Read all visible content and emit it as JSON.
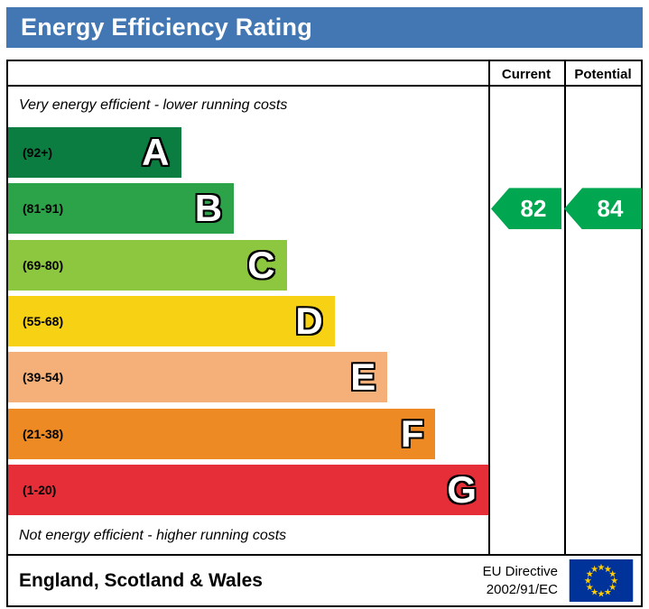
{
  "header": {
    "title": "Energy Efficiency Rating",
    "bar_color": "#4277b4"
  },
  "table_header": {
    "current": "Current",
    "potential": "Potential"
  },
  "captions": {
    "top": "Very energy efficient - lower running costs",
    "bottom": "Not energy efficient - higher running costs"
  },
  "chart_data": {
    "type": "bar",
    "title": "Energy Efficiency Rating",
    "bands": [
      {
        "letter": "A",
        "range_label": "(92+)",
        "range_min": 92,
        "range_max": 100,
        "color": "#0c7d40",
        "width_pct": 36
      },
      {
        "letter": "B",
        "range_label": "(81-91)",
        "range_min": 81,
        "range_max": 91,
        "color": "#2ca349",
        "width_pct": 47
      },
      {
        "letter": "C",
        "range_label": "(69-80)",
        "range_min": 69,
        "range_max": 80,
        "color": "#8dc63f",
        "width_pct": 58
      },
      {
        "letter": "D",
        "range_label": "(55-68)",
        "range_min": 55,
        "range_max": 68,
        "color": "#f7d113",
        "width_pct": 68
      },
      {
        "letter": "E",
        "range_label": "(39-54)",
        "range_min": 39,
        "range_max": 54,
        "color": "#f5b07a",
        "width_pct": 79
      },
      {
        "letter": "F",
        "range_label": "(21-38)",
        "range_min": 21,
        "range_max": 38,
        "color": "#ee8a23",
        "width_pct": 89
      },
      {
        "letter": "G",
        "range_label": "(1-20)",
        "range_min": 1,
        "range_max": 20,
        "color": "#e52e37",
        "width_pct": 100
      }
    ],
    "current": {
      "value": 82,
      "band": "B",
      "color": "#00a650"
    },
    "potential": {
      "value": 84,
      "band": "B",
      "color": "#00a650"
    }
  },
  "footer": {
    "region": "England, Scotland & Wales",
    "eu_directive_line1": "EU Directive",
    "eu_directive_line2": "2002/91/EC",
    "flag": {
      "field": "#003399",
      "stars": "#ffcc00"
    }
  }
}
